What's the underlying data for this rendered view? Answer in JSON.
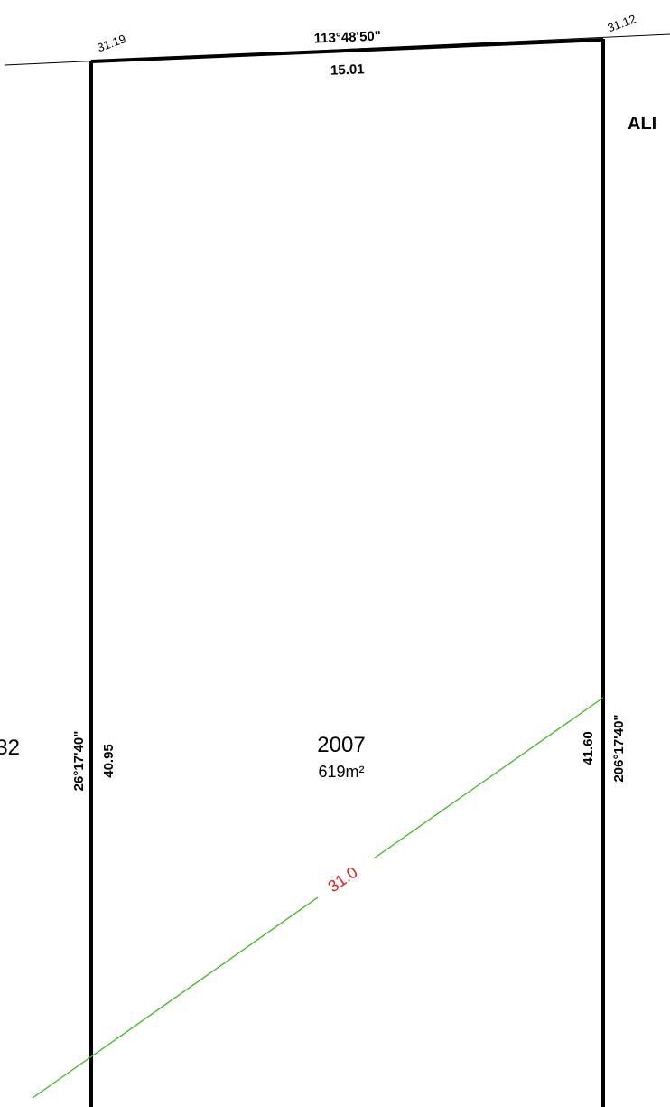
{
  "top_left_corner": "31.19",
  "top_bearing": "113°48'50\"",
  "top_right_corner": "31.12",
  "top_distance": "15.01",
  "road_label": "ALI",
  "neighbour_lot": "32",
  "left_bearing": "26°17'40\"",
  "left_distance": "40.95",
  "lot_number": "2007",
  "lot_area": "619m²",
  "right_distance": "41.60",
  "right_bearing": "206°17'40\"",
  "setback_label": "31.0"
}
